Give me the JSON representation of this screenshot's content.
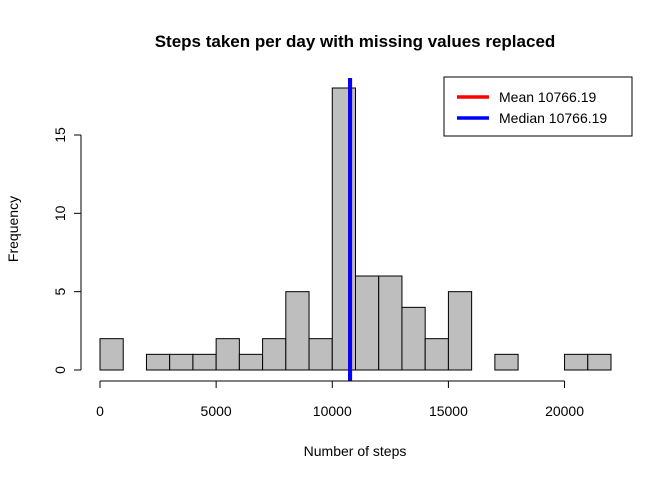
{
  "chart_data": {
    "type": "bar",
    "subtype": "histogram",
    "title": "Steps taken per day with missing values replaced",
    "xlabel": "Number of steps",
    "ylabel": "Frequency",
    "xlim": [
      0,
      22000
    ],
    "ylim": [
      0,
      18
    ],
    "bin_width": 1000,
    "bins": [
      {
        "start": 0,
        "end": 1000,
        "count": 2
      },
      {
        "start": 1000,
        "end": 2000,
        "count": 0
      },
      {
        "start": 2000,
        "end": 3000,
        "count": 1
      },
      {
        "start": 3000,
        "end": 4000,
        "count": 1
      },
      {
        "start": 4000,
        "end": 5000,
        "count": 1
      },
      {
        "start": 5000,
        "end": 6000,
        "count": 2
      },
      {
        "start": 6000,
        "end": 7000,
        "count": 1
      },
      {
        "start": 7000,
        "end": 8000,
        "count": 2
      },
      {
        "start": 8000,
        "end": 9000,
        "count": 5
      },
      {
        "start": 9000,
        "end": 10000,
        "count": 2
      },
      {
        "start": 10000,
        "end": 11000,
        "count": 18
      },
      {
        "start": 11000,
        "end": 12000,
        "count": 6
      },
      {
        "start": 12000,
        "end": 13000,
        "count": 6
      },
      {
        "start": 13000,
        "end": 14000,
        "count": 4
      },
      {
        "start": 14000,
        "end": 15000,
        "count": 2
      },
      {
        "start": 15000,
        "end": 16000,
        "count": 5
      },
      {
        "start": 16000,
        "end": 17000,
        "count": 0
      },
      {
        "start": 17000,
        "end": 18000,
        "count": 1
      },
      {
        "start": 18000,
        "end": 19000,
        "count": 0
      },
      {
        "start": 19000,
        "end": 20000,
        "count": 0
      },
      {
        "start": 20000,
        "end": 21000,
        "count": 1
      },
      {
        "start": 21000,
        "end": 22000,
        "count": 1
      }
    ],
    "x_ticks": [
      0,
      5000,
      10000,
      15000,
      20000
    ],
    "y_ticks": [
      0,
      5,
      10,
      15
    ],
    "bar_color": "#bebebe",
    "vlines": [
      {
        "name": "Mean",
        "value": 10766.19,
        "color": "#ff0000"
      },
      {
        "name": "Median",
        "value": 10766.19,
        "color": "#0000ff"
      }
    ],
    "legend": {
      "placement": "top-right",
      "entries": [
        {
          "label": "Mean 10766.19",
          "color": "#ff0000"
        },
        {
          "label": "Median 10766.19",
          "color": "#0000ff"
        }
      ]
    }
  }
}
